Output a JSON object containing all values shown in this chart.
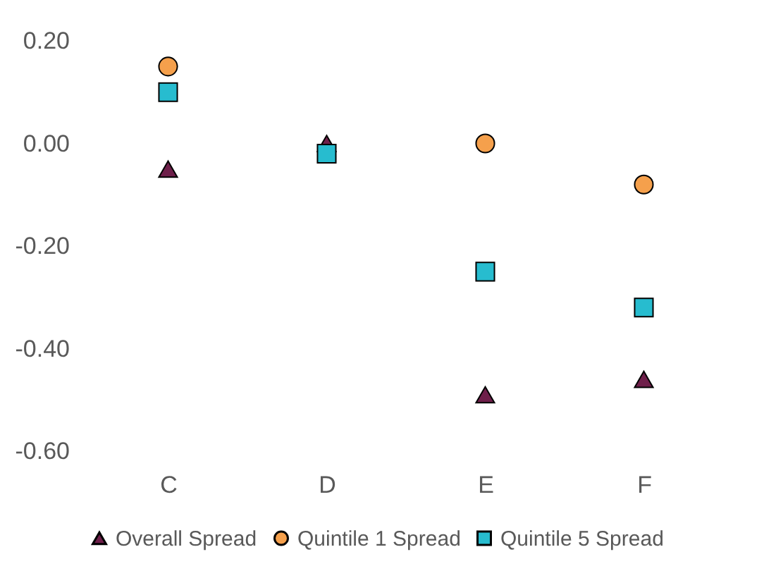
{
  "chart_data": {
    "type": "scatter",
    "categories": [
      "C",
      "D",
      "E",
      "F"
    ],
    "series": [
      {
        "name": "Overall Spread",
        "color": "#6e1f4a",
        "marker": "triangle",
        "values": [
          -0.05,
          0.0,
          -0.49,
          -0.46
        ]
      },
      {
        "name": "Quintile 1 Spread",
        "color": "#f5a04c",
        "marker": "circle",
        "values": [
          0.15,
          null,
          0.0,
          -0.08
        ]
      },
      {
        "name": "Quintile 5 Spread",
        "color": "#27bccf",
        "marker": "square",
        "values": [
          0.1,
          -0.02,
          -0.25,
          -0.32
        ]
      }
    ],
    "ylim": [
      -0.6,
      0.2
    ],
    "yticks": [
      {
        "value": -0.6,
        "label": "-0.60"
      },
      {
        "value": -0.4,
        "label": "-0.40"
      },
      {
        "value": -0.2,
        "label": "-0.20"
      },
      {
        "value": 0,
        "label": "0.00"
      },
      {
        "value": 0.2,
        "label": "0.20"
      }
    ],
    "grid": false,
    "legend": "bottom"
  }
}
